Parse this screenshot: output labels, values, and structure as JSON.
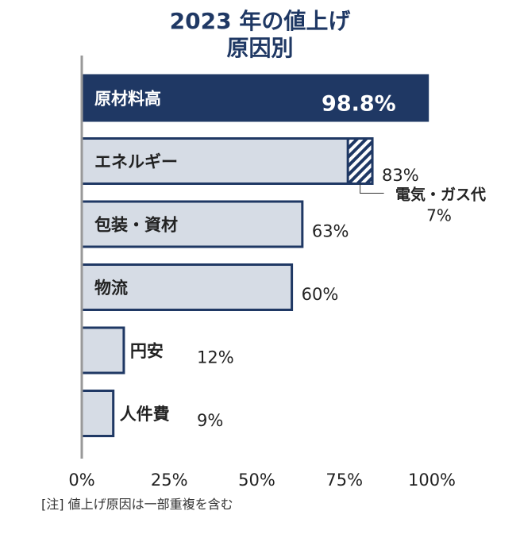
{
  "title_lines": [
    "2023 年の値上げ",
    "原因別"
  ],
  "note": "[注] 値上げ原因は一部重複を含む",
  "colors": {
    "highlight_fill": "#1f3864",
    "bar_fill": "#d6dce5",
    "bar_stroke": "#1f3864",
    "text_dark": "#222222",
    "axis": "#999999"
  },
  "chart_data": {
    "type": "bar",
    "orientation": "horizontal",
    "title": "2023 年の値上げ 原因別",
    "categories": [
      "原材料高",
      "エネルギー",
      "包装・資材",
      "物流",
      "円安",
      "人件費"
    ],
    "values": [
      98.8,
      83,
      63,
      60,
      12,
      9
    ],
    "value_labels": [
      "98.8%",
      "83%",
      "63%",
      "60%",
      "12%",
      "9%"
    ],
    "highlight_index": 0,
    "sub_segment": {
      "category": "エネルギー",
      "label": "電気・ガス代",
      "value": 7,
      "value_label": "7%",
      "pattern": "diagonal-hatch"
    },
    "xlim": [
      0,
      100
    ],
    "x_ticks": [
      0,
      25,
      50,
      75,
      100
    ],
    "x_tick_labels": [
      "0%",
      "25%",
      "50%",
      "75%",
      "100%"
    ],
    "grid": false,
    "legend": "none"
  }
}
